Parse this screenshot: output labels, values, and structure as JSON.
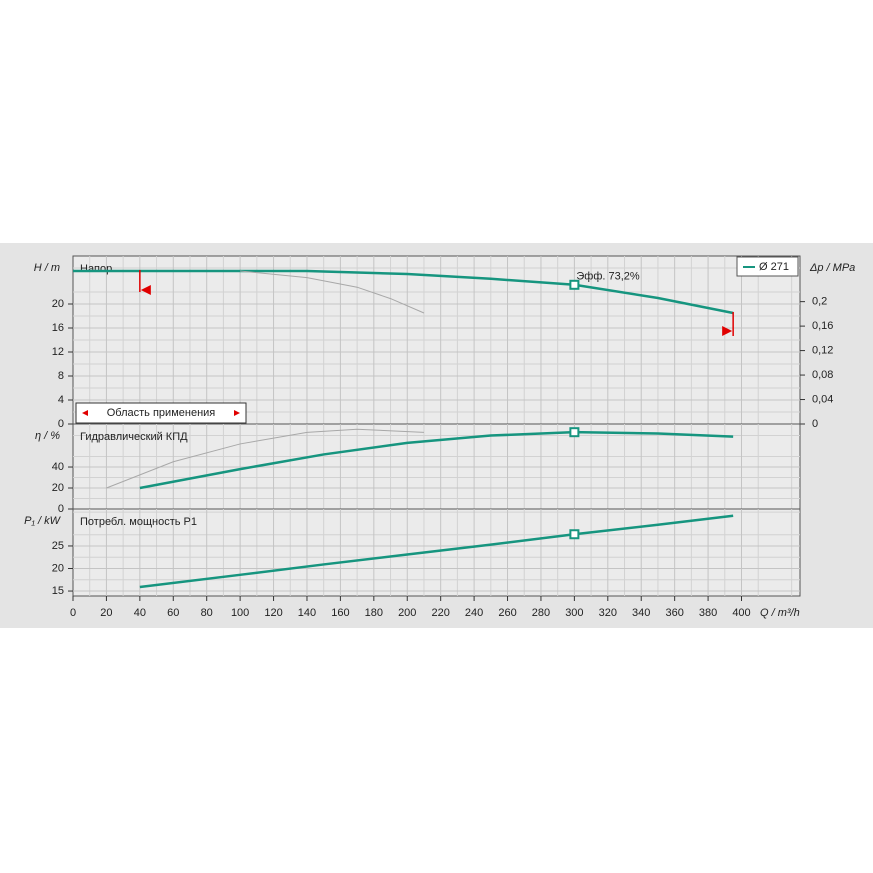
{
  "chart_data": [
    {
      "type": "line",
      "title": "Напор",
      "y_label": "H / m",
      "y2_label": "Δp / MPa",
      "xlim": [
        0,
        435
      ],
      "ylim": [
        0,
        28
      ],
      "yticks": [
        0,
        4,
        8,
        12,
        16,
        20
      ],
      "y2lim": [
        0,
        0.2746
      ],
      "y2ticks": [
        0,
        {
          "value": 0.04,
          "label": "0,04"
        },
        {
          "value": 0.08,
          "label": "0,08"
        },
        {
          "value": 0.12,
          "label": "0,12"
        },
        {
          "value": 0.16,
          "label": "0,16"
        },
        {
          "value": 0.2,
          "label": "0,2"
        }
      ],
      "grid": true,
      "series": [
        {
          "name": "Ø 271",
          "color": "#16957f",
          "x": [
            0,
            40,
            100,
            140,
            200,
            250,
            300,
            350,
            395
          ],
          "values": [
            25.5,
            25.5,
            25.5,
            25.5,
            25.0,
            24.2,
            23.2,
            21.0,
            18.5
          ]
        },
        {
          "color": "#a8a8a8",
          "x": [
            100,
            140,
            170,
            190,
            210
          ],
          "values": [
            25.5,
            24.4,
            22.8,
            20.9,
            18.5
          ]
        },
        {
          "color": "#16957f",
          "marker": "square",
          "x": [
            300
          ],
          "values": [
            23.2
          ]
        }
      ],
      "annotation": "Эфф.  73,2%",
      "application_range": {
        "label": "Область применения",
        "x": [
          40,
          395
        ]
      }
    },
    {
      "type": "line",
      "title": "Гидравлический КПД",
      "y_label": "η / %",
      "xlim": [
        0,
        435
      ],
      "ylim": [
        0,
        81
      ],
      "yticks": [
        0,
        20,
        40
      ],
      "grid": true,
      "series": [
        {
          "color": "#16957f",
          "x": [
            40,
            100,
            150,
            200,
            250,
            300,
            350,
            395
          ],
          "values": [
            20,
            38,
            52,
            63,
            70,
            73.2,
            72,
            69
          ]
        },
        {
          "color": "#a8a8a8",
          "x": [
            20,
            60,
            100,
            140,
            170,
            210
          ],
          "values": [
            20,
            45,
            62,
            73,
            76,
            73
          ]
        },
        {
          "color": "#16957f",
          "marker": "square",
          "x": [
            300
          ],
          "values": [
            73.2
          ]
        }
      ]
    },
    {
      "type": "line",
      "title": "Потребл. мощность P1",
      "y_label": "P₁ / kW",
      "x_label": "Q / m³/h",
      "xlim": [
        0,
        435
      ],
      "ylim": [
        13.9,
        33.2
      ],
      "yticks": [
        15,
        20,
        25
      ],
      "grid": true,
      "xticks": [
        0,
        20,
        40,
        60,
        80,
        100,
        120,
        140,
        160,
        180,
        200,
        220,
        240,
        260,
        280,
        300,
        320,
        340,
        360,
        380,
        400
      ],
      "series": [
        {
          "color": "#16957f",
          "x": [
            40,
            100,
            150,
            200,
            250,
            300,
            350,
            395
          ],
          "values": [
            15.9,
            18.6,
            20.9,
            23.1,
            25.3,
            27.6,
            29.7,
            31.7
          ]
        },
        {
          "color": "#16957f",
          "marker": "square",
          "x": [
            300
          ],
          "values": [
            27.6
          ]
        }
      ]
    }
  ]
}
